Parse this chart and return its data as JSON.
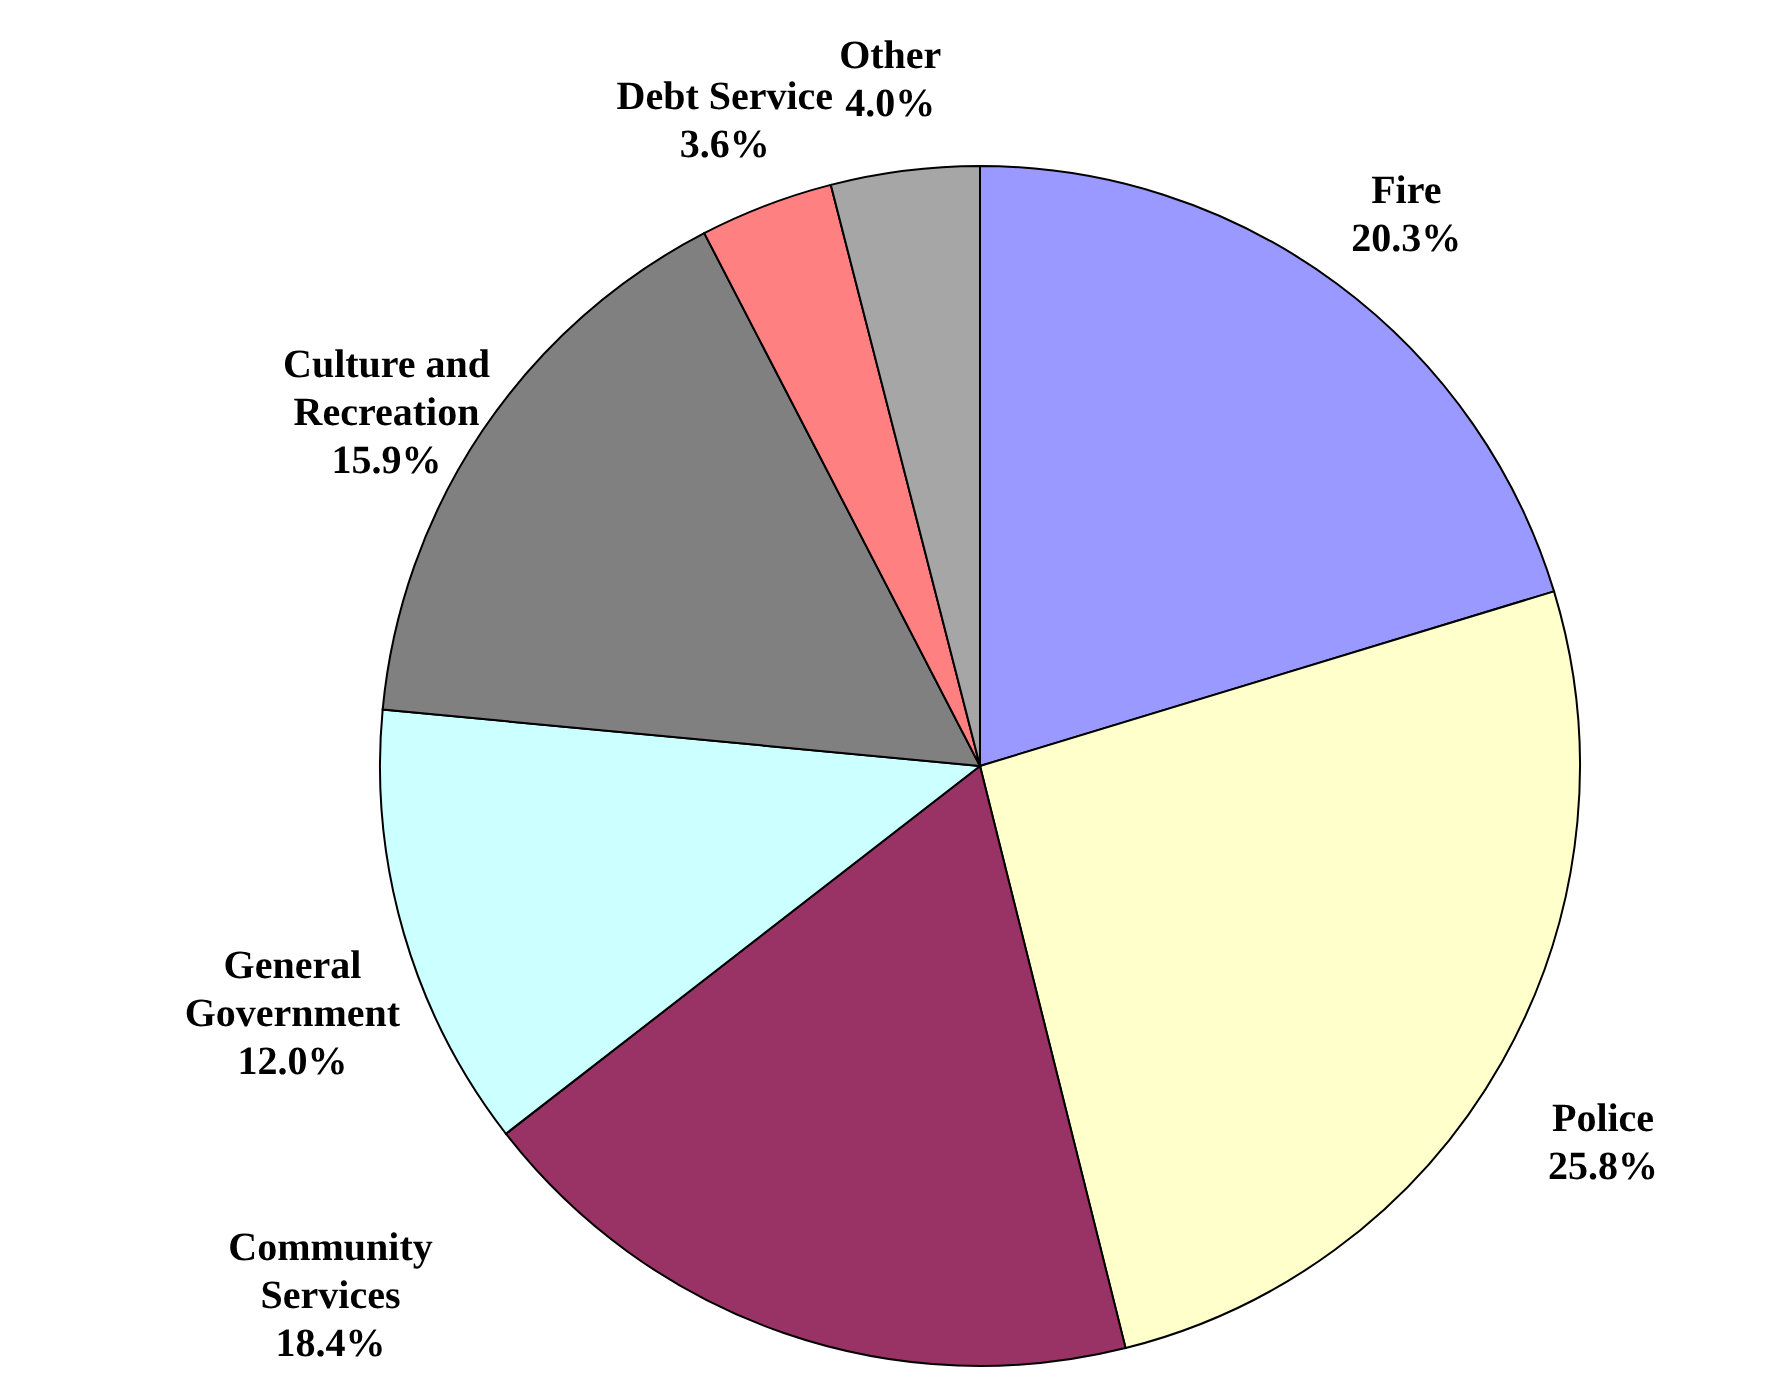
{
  "chart_data": {
    "type": "pie",
    "categories": [
      "Fire",
      "Police",
      "Community Services",
      "General Government",
      "Culture and Recreation",
      "Debt Service",
      "Other"
    ],
    "values": [
      20.3,
      25.8,
      18.4,
      12.0,
      15.9,
      3.6,
      4.0
    ],
    "colors": [
      "#9999ff",
      "#ffffcc",
      "#993366",
      "#ccffff",
      "#808080",
      "#ff8080",
      "#a6a6a6"
    ],
    "value_labels": [
      "20.3%",
      "25.8%",
      "18.4%",
      "12.0%",
      "15.9%",
      "3.6%",
      "4.0%"
    ]
  }
}
